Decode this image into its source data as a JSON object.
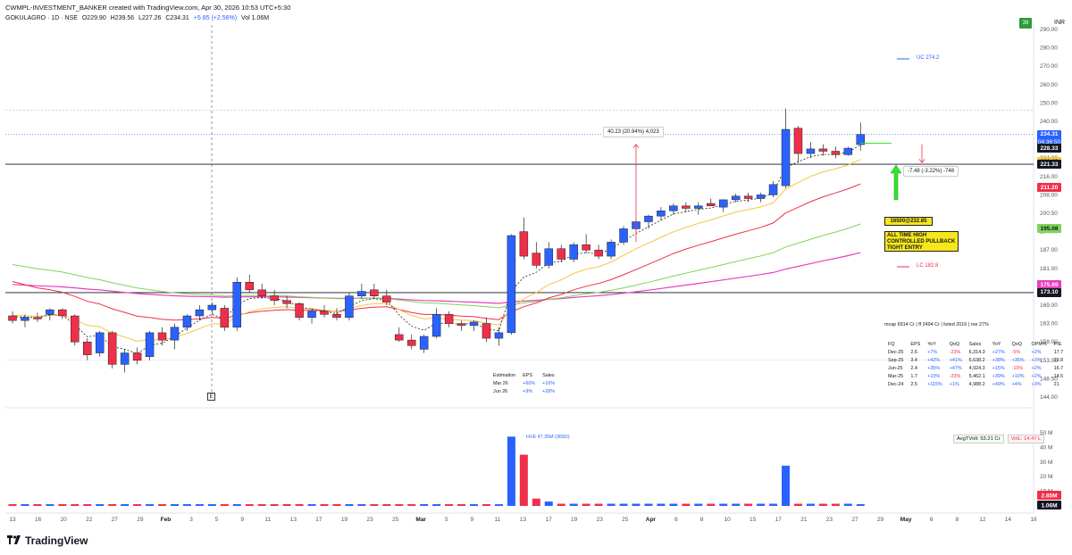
{
  "header": {
    "creator": "CWMPL-INVESTMENT_BANKER created with TradingView.com, Apr 30, 2026 10:53 UTC+5:30",
    "symbol": "GOKULAGRO · 1D · NSE",
    "open": "O229.90",
    "high": "H239.56",
    "low": "L227.26",
    "close": "C234.31",
    "change": "+5.85 (+2.56%)",
    "volume": "Vol 1.06M",
    "badge": "39",
    "currency": "INR"
  },
  "colors": {
    "up": "#2a62ff",
    "down": "#ef2f4a",
    "ema_fast": "#222222",
    "ema_yellow": "#f5c542",
    "ema_red": "#ef2f4a",
    "ema_green": "#7fd45a",
    "ema_pink": "#e83fbf",
    "annotation": "#f6e71a",
    "arrow": "#2ee52e"
  },
  "price_axis": {
    "labels": [
      "290.00",
      "280.00",
      "270.00",
      "260.00",
      "250.00",
      "240.00",
      "232.00",
      "224.00",
      "216.00",
      "208.00",
      "200.50",
      "194.00",
      "187.00",
      "181.00",
      "175.00",
      "169.00",
      "163.00",
      "158.00",
      "153.00",
      "148.50",
      "144.00"
    ]
  },
  "price_tags": [
    {
      "value": "234.31",
      "sub": "04:36:50",
      "color": "#2a62ff"
    },
    {
      "value": "228.33",
      "color": "#131722"
    },
    {
      "value": "222.48",
      "color": "#f5c542",
      "dark": true
    },
    {
      "value": "221.33",
      "color": "#131722"
    },
    {
      "value": "211.20",
      "color": "#ef2f4a"
    },
    {
      "value": "195.08",
      "color": "#7fd45a",
      "dark": true
    },
    {
      "value": "175.69",
      "color": "#e83fbf"
    },
    {
      "value": "173.10",
      "color": "#131722"
    }
  ],
  "volume_axis": {
    "labels": [
      "50 M",
      "40 M",
      "30 M",
      "20 M",
      "10 M"
    ],
    "tags": [
      {
        "value": "2.85M",
        "color": "#ef2f4a"
      },
      {
        "value": "1.06M",
        "color": "#131722"
      }
    ]
  },
  "time_axis": {
    "labels": [
      "13",
      "16",
      "20",
      "22",
      "27",
      "29",
      "Feb",
      "3",
      "5",
      "9",
      "11",
      "13",
      "17",
      "19",
      "23",
      "25",
      "Mar",
      "5",
      "9",
      "11",
      "13",
      "17",
      "19",
      "23",
      "25",
      "Apr",
      "6",
      "8",
      "10",
      "15",
      "17",
      "21",
      "23",
      "27",
      "29",
      "May",
      "6",
      "8",
      "12",
      "14",
      "18"
    ]
  },
  "annotations": {
    "measure_up": "40.23 (20.94%) 4,023",
    "measure_down": "-7.48 (-3.22%) -748",
    "buy": "16500@232.85",
    "note_lines": [
      "ALL TIME HIGH",
      "CONTROLLED PULLBACK",
      "TIGHT ENTRY"
    ],
    "uc": "UC 274.2",
    "lc": "LC 182.8",
    "volume_high": "HVE 47.35M (365D)",
    "avg_turnover": "AvgTVolt: 53.21 Cr",
    "vol_pct": "VolL: 14.47 L",
    "earnings_marker": "E"
  },
  "estimation_table": {
    "headers": [
      "Estimation",
      "EPS",
      "Sales"
    ],
    "rows": [
      [
        "Mar 26",
        "+60%",
        "+16%"
      ],
      [
        "Jun 26",
        "+9%",
        "+28%"
      ]
    ]
  },
  "fundamentals": {
    "summary": "mcap 6914 Cr | ff 2494 Cr | listed 2016 | roe 27%",
    "headers": [
      "FQ",
      "EPS",
      "YoY",
      "QoQ",
      "Sales",
      "YoY",
      "QoQ",
      "OPM%",
      "P/E"
    ],
    "rows": [
      [
        "Dec-25",
        "2.6",
        "+7%",
        "-23%",
        "6,314.3",
        "+27%",
        "-5%",
        "+2%",
        "17.7"
      ],
      [
        "Sep-25",
        "3.4",
        "+42%",
        "+41%",
        "6,638.2",
        "+38%",
        "+35%",
        "+3%",
        "19.8"
      ],
      [
        "Jun-25",
        "2.4",
        "+35%",
        "+47%",
        "4,924.3",
        "+15%",
        "-10%",
        "+2%",
        "16.7"
      ],
      [
        "Mar-25",
        "1.7",
        "+10%",
        "-33%",
        "5,462.1",
        "+39%",
        "+10%",
        "+2%",
        "14.5"
      ],
      [
        "Dec-24",
        "2.5",
        "+115%",
        "+1%",
        "4,988.2",
        "+49%",
        "+4%",
        "+3%",
        "21"
      ]
    ]
  },
  "brand": "TradingView",
  "chart_data": {
    "type": "candlestick",
    "title": "GOKULAGRO · 1D · NSE",
    "ylim": [
      140,
      295
    ],
    "candles": [
      {
        "o": 165.5,
        "h": 167,
        "l": 163,
        "c": 164
      },
      {
        "o": 164,
        "h": 166,
        "l": 162,
        "c": 165
      },
      {
        "o": 165,
        "h": 166.5,
        "l": 163.5,
        "c": 164.5
      },
      {
        "o": 166,
        "h": 168,
        "l": 164,
        "c": 167.5
      },
      {
        "o": 167.5,
        "h": 168,
        "l": 164.5,
        "c": 165.5
      },
      {
        "o": 165.5,
        "h": 166,
        "l": 157,
        "c": 158
      },
      {
        "o": 158,
        "h": 159,
        "l": 153,
        "c": 154.5
      },
      {
        "o": 155,
        "h": 161,
        "l": 154,
        "c": 160.5
      },
      {
        "o": 160.5,
        "h": 161,
        "l": 151,
        "c": 152
      },
      {
        "o": 152,
        "h": 156,
        "l": 150,
        "c": 155
      },
      {
        "o": 155,
        "h": 156.5,
        "l": 152,
        "c": 153
      },
      {
        "o": 154,
        "h": 161,
        "l": 153,
        "c": 160.5
      },
      {
        "o": 160.5,
        "h": 162,
        "l": 157,
        "c": 158.5
      },
      {
        "o": 158.5,
        "h": 163,
        "l": 156,
        "c": 162
      },
      {
        "o": 162,
        "h": 166,
        "l": 161,
        "c": 165.5
      },
      {
        "o": 165.5,
        "h": 169,
        "l": 164,
        "c": 167.5
      },
      {
        "o": 167.5,
        "h": 170,
        "l": 166,
        "c": 169
      },
      {
        "o": 168,
        "h": 169,
        "l": 161,
        "c": 162
      },
      {
        "o": 162,
        "h": 178,
        "l": 161,
        "c": 176.5
      },
      {
        "o": 176.5,
        "h": 179,
        "l": 173,
        "c": 174
      },
      {
        "o": 174,
        "h": 176,
        "l": 171,
        "c": 172
      },
      {
        "o": 172,
        "h": 174,
        "l": 169,
        "c": 170.5
      },
      {
        "o": 170.5,
        "h": 172,
        "l": 168,
        "c": 169.5
      },
      {
        "o": 169.5,
        "h": 170,
        "l": 164,
        "c": 165
      },
      {
        "o": 165,
        "h": 168,
        "l": 163,
        "c": 167
      },
      {
        "o": 167,
        "h": 169,
        "l": 165,
        "c": 166
      },
      {
        "o": 166,
        "h": 168,
        "l": 164,
        "c": 165
      },
      {
        "o": 165,
        "h": 173,
        "l": 164,
        "c": 172
      },
      {
        "o": 172,
        "h": 176,
        "l": 171,
        "c": 173.5
      },
      {
        "o": 174,
        "h": 176,
        "l": 171,
        "c": 172
      },
      {
        "o": 172,
        "h": 174,
        "l": 169,
        "c": 170
      },
      {
        "o": 160,
        "h": 162,
        "l": 158,
        "c": 158.5
      },
      {
        "o": 158.5,
        "h": 160,
        "l": 156,
        "c": 157
      },
      {
        "o": 156,
        "h": 160,
        "l": 155,
        "c": 159.5
      },
      {
        "o": 159.5,
        "h": 168,
        "l": 159,
        "c": 166
      },
      {
        "o": 166,
        "h": 167,
        "l": 162,
        "c": 163
      },
      {
        "o": 163,
        "h": 164,
        "l": 161,
        "c": 162.5
      },
      {
        "o": 162.5,
        "h": 164,
        "l": 161,
        "c": 163.5
      },
      {
        "o": 163,
        "h": 165,
        "l": 158,
        "c": 159
      },
      {
        "o": 159,
        "h": 162,
        "l": 157,
        "c": 160.5
      },
      {
        "o": 160.5,
        "h": 193,
        "l": 160,
        "c": 192.5
      },
      {
        "o": 194,
        "h": 199,
        "l": 184,
        "c": 185
      },
      {
        "o": 186,
        "h": 190,
        "l": 181,
        "c": 182
      },
      {
        "o": 182,
        "h": 190,
        "l": 181,
        "c": 187.5
      },
      {
        "o": 187.5,
        "h": 189,
        "l": 183,
        "c": 184
      },
      {
        "o": 184,
        "h": 190,
        "l": 183,
        "c": 189
      },
      {
        "o": 189,
        "h": 193,
        "l": 186,
        "c": 187
      },
      {
        "o": 187,
        "h": 189,
        "l": 184,
        "c": 185
      },
      {
        "o": 185,
        "h": 191,
        "l": 184,
        "c": 190
      },
      {
        "o": 190,
        "h": 196,
        "l": 189,
        "c": 195
      },
      {
        "o": 195,
        "h": 198,
        "l": 194,
        "c": 197.5
      },
      {
        "o": 197.5,
        "h": 200,
        "l": 195,
        "c": 199.5
      },
      {
        "o": 199.5,
        "h": 203,
        "l": 198,
        "c": 201.5
      },
      {
        "o": 201.5,
        "h": 204.5,
        "l": 200,
        "c": 203.5
      },
      {
        "o": 203.5,
        "h": 205,
        "l": 201,
        "c": 202.5
      },
      {
        "o": 202.5,
        "h": 205,
        "l": 200,
        "c": 203.5
      },
      {
        "o": 204.5,
        "h": 206.5,
        "l": 203.5,
        "c": 203.5
      },
      {
        "o": 203,
        "h": 206,
        "l": 201,
        "c": 206
      },
      {
        "o": 206,
        "h": 208.5,
        "l": 205,
        "c": 207.5
      },
      {
        "o": 207.5,
        "h": 209,
        "l": 205,
        "c": 206.5
      },
      {
        "o": 206.5,
        "h": 209,
        "l": 205,
        "c": 208
      },
      {
        "o": 208,
        "h": 214,
        "l": 207,
        "c": 212.5
      },
      {
        "o": 212,
        "h": 247,
        "l": 211,
        "c": 236.5
      },
      {
        "o": 237,
        "h": 238,
        "l": 222,
        "c": 226
      },
      {
        "o": 226,
        "h": 231,
        "l": 224,
        "c": 228
      },
      {
        "o": 228,
        "h": 230,
        "l": 225,
        "c": 227
      },
      {
        "o": 227,
        "h": 229,
        "l": 224,
        "c": 225.5
      },
      {
        "o": 225.5,
        "h": 229,
        "l": 225,
        "c": 228.3
      },
      {
        "o": 229.9,
        "h": 239.56,
        "l": 227.26,
        "c": 234.31
      }
    ]
  }
}
